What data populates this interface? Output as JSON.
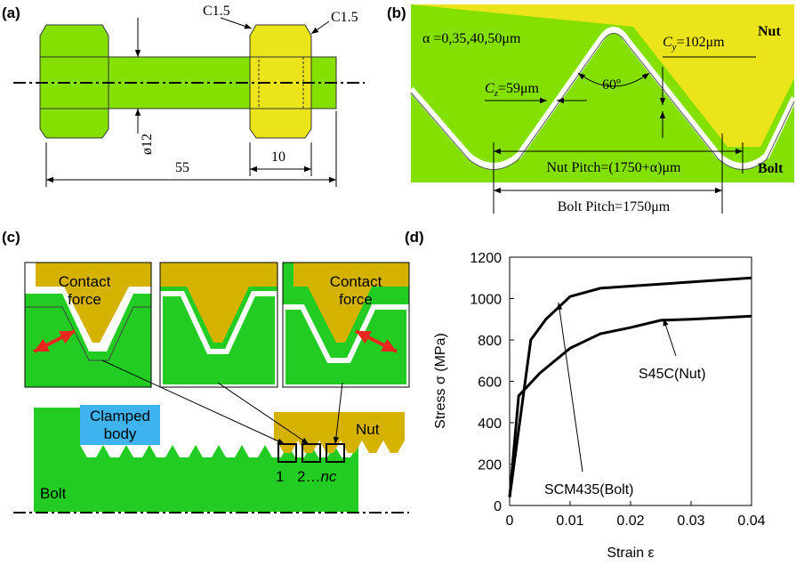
{
  "panel_a": {
    "label": "(a)",
    "chamfer_left": "C1.5",
    "chamfer_right": "C1.5",
    "diameter": "ø12",
    "length": "55",
    "nut_width": "10"
  },
  "panel_b": {
    "label": "(b)",
    "alpha": "α =0,35,40,50μm",
    "cy": {
      "symbol": "C",
      "subscript": "y",
      "rest": "=102μm"
    },
    "cz": {
      "symbol": "C",
      "subscript": "z",
      "rest": "=59μm"
    },
    "angle": "60º",
    "nut": "Nut",
    "bolt": "Bolt",
    "nut_pitch": "Nut Pitch=(1750+α)μm",
    "bolt_pitch": "Bolt Pitch=1750μm"
  },
  "panel_c": {
    "label": "(c)",
    "contact_force_left": [
      "Contact",
      "force"
    ],
    "contact_force_right": [
      "Contact",
      "force"
    ],
    "clamped_body": [
      "Clamped",
      "body"
    ],
    "nut": "Nut",
    "bolt": "Bolt",
    "thread_first": "1",
    "thread_second": "2…",
    "thread_last": "nc"
  },
  "panel_d_label": "(d)",
  "chart_data": {
    "type": "line",
    "x_label": "Strain ε",
    "y_label": "Stress σ (MPa)",
    "xlim": [
      0,
      0.04
    ],
    "ylim": [
      0,
      1200
    ],
    "xticks": [
      0,
      0.01,
      0.02,
      0.03,
      0.04
    ],
    "yticks": [
      0,
      200,
      400,
      600,
      800,
      1000,
      1200
    ],
    "series": [
      {
        "name": "SCM435(Bolt)",
        "color": "#000000",
        "x": [
          0,
          0.0035,
          0.006,
          0.01,
          0.015,
          0.02,
          0.03,
          0.04
        ],
        "values": [
          40,
          800,
          900,
          1010,
          1050,
          1060,
          1080,
          1100
        ]
      },
      {
        "name": "S45C(Nut)",
        "color": "#000000",
        "x": [
          0,
          0.0015,
          0.005,
          0.01,
          0.015,
          0.02,
          0.025,
          0.03,
          0.04
        ],
        "values": [
          40,
          530,
          640,
          760,
          830,
          860,
          895,
          900,
          915
        ]
      }
    ]
  }
}
